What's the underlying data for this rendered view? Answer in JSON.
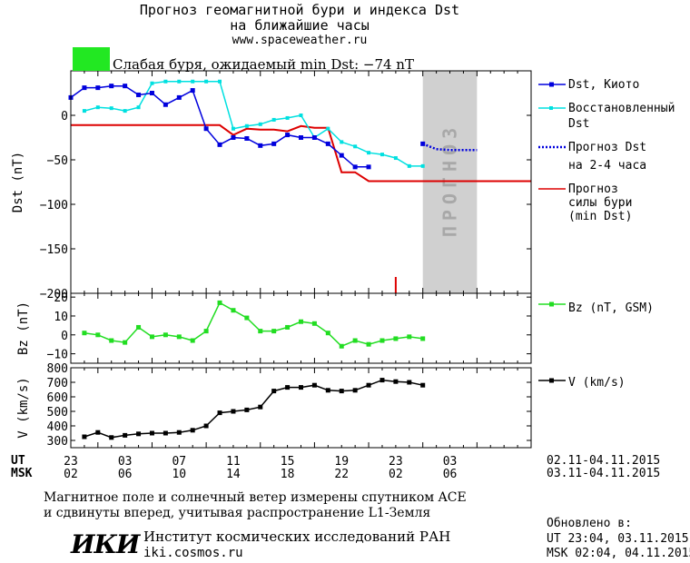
{
  "header": {
    "title_line1": "Прогноз геомагнитной бури и индекса Dst",
    "title_line2": "на ближайшие часы",
    "site": "www.spaceweather.ru",
    "storm_status": "Слабая буря, ожидаемый min Dst: −74 nT",
    "storm_color": "#22e822"
  },
  "colors": {
    "dst": "#0000dd",
    "restored": "#00e0e0",
    "forecast": "#0000dd",
    "storm": "#dd0000",
    "bz": "#22dd22",
    "v": "#000000",
    "forecast_zone": "#d0d0d0"
  },
  "legend": {
    "dst": "Dst, Киото",
    "restored_line1": "Восстановленный",
    "restored_line2": "Dst",
    "forecast_line1": "Прогноз Dst",
    "forecast_line2": "на 2-4 часа",
    "storm_line1": "Прогноз",
    "storm_line2": "силы бури",
    "storm_line3": "(min Dst)",
    "bz": "Bz (nT, GSM)",
    "v": "V (km/s)"
  },
  "forecast_zone_label": "ПРОГНОЗ",
  "time_axis": {
    "ut_label": "UT",
    "msk_label": "MSK",
    "ut_ticks": [
      "23",
      "03",
      "07",
      "11",
      "15",
      "19",
      "23",
      "03"
    ],
    "msk_ticks": [
      "02",
      "06",
      "10",
      "14",
      "18",
      "22",
      "02",
      "06"
    ],
    "ut_range": "02.11-04.11.2015",
    "msk_range": "03.11-04.11.2015"
  },
  "footer": {
    "note_line1": "Магнитное поле и солнечный ветер измерены спутником ACE",
    "note_line2": "и сдвинуты вперед, учитывая распространение L1-Земля",
    "institute_logo": "ИКИ",
    "institute_name": "Институт космических исследований РАН",
    "institute_url": "iki.cosmos.ru",
    "updated_label": "Обновлено в:",
    "updated_ut": "UT  23:04, 03.11.2015",
    "updated_msk": "MSK 02:04, 04.11.2015"
  },
  "chart_data": [
    {
      "type": "line",
      "panel": "dst",
      "ylabel": "Dst (nT)",
      "ylim": [
        -200,
        50
      ],
      "yticks": [
        0,
        -50,
        -100,
        -150,
        -200
      ],
      "x_unit": "hours from 23 UT 02.11.2015",
      "xlim": [
        -2,
        32
      ],
      "forecast_zone_x": [
        24,
        28
      ],
      "series": [
        {
          "name": "Dst, Киото",
          "x": [
            -2,
            -1,
            0,
            1,
            2,
            3,
            4,
            5,
            6,
            7,
            8,
            9,
            10,
            11,
            12,
            13,
            14,
            15,
            16,
            17,
            18,
            19,
            20,
            21,
            22
          ],
          "y": [
            20,
            31,
            31,
            33,
            33,
            23,
            25,
            12,
            20,
            28,
            -15,
            -33,
            -25,
            -26,
            -34,
            -32,
            -22,
            -25,
            -25,
            -32,
            -45,
            -58,
            -58,
            null,
            null
          ]
        },
        {
          "name": "Восстановленный Dst",
          "x": [
            -1,
            0,
            1,
            2,
            3,
            4,
            5,
            6,
            7,
            8,
            9,
            10,
            11,
            12,
            13,
            14,
            15,
            16,
            17,
            18,
            19,
            20,
            21,
            22,
            23,
            24,
            25
          ],
          "y": [
            5,
            9,
            8,
            5,
            9,
            36,
            38,
            38,
            38,
            38,
            38,
            -15,
            -12,
            -10,
            -5,
            -3,
            0,
            -25,
            -15,
            -30,
            -35,
            -42,
            -44,
            -48,
            -57,
            -57,
            null
          ]
        },
        {
          "name": "Прогноз Dst на 2-4 часа",
          "x": [
            24,
            25,
            26,
            27,
            28
          ],
          "y": [
            -32,
            -38,
            -39,
            -39,
            -39
          ]
        },
        {
          "name": "Прогноз силы бури (min Dst)",
          "x": [
            -2,
            9,
            10,
            11,
            12,
            13,
            14,
            15,
            16,
            17,
            18,
            19,
            20,
            32
          ],
          "y": [
            -11,
            -11,
            -22,
            -15,
            -16,
            -16,
            -18,
            -12,
            -14,
            -14,
            -64,
            -64,
            -74,
            -74
          ]
        }
      ],
      "marker_x": 22
    },
    {
      "type": "line",
      "panel": "bz",
      "ylabel": "Bz (nT)",
      "ylim": [
        -15,
        22
      ],
      "yticks": [
        20,
        10,
        0,
        -10
      ],
      "series": [
        {
          "name": "Bz (nT, GSM)",
          "x": [
            -1,
            0,
            1,
            2,
            3,
            4,
            5,
            6,
            7,
            8,
            9,
            10,
            11,
            12,
            13,
            14,
            15,
            16,
            17,
            18,
            19,
            20,
            21,
            22,
            23,
            24
          ],
          "y": [
            1,
            0,
            -3,
            -4,
            4,
            -1,
            0,
            -1,
            -3,
            2,
            17,
            13,
            9,
            2,
            2,
            4,
            7,
            6,
            1,
            -6,
            -3,
            -5,
            -3,
            -2,
            -1,
            -2
          ]
        }
      ]
    },
    {
      "type": "line",
      "panel": "v",
      "ylabel": "V (km/s)",
      "ylim": [
        250,
        800
      ],
      "yticks": [
        300,
        400,
        500,
        600,
        700,
        800
      ],
      "series": [
        {
          "name": "V (km/s)",
          "x": [
            -1,
            0,
            1,
            2,
            3,
            4,
            5,
            6,
            7,
            8,
            9,
            10,
            11,
            12,
            13,
            14,
            15,
            16,
            17,
            18,
            19,
            20,
            21,
            22,
            23,
            24
          ],
          "y": [
            325,
            355,
            320,
            335,
            345,
            350,
            350,
            355,
            370,
            400,
            490,
            500,
            510,
            530,
            640,
            665,
            665,
            680,
            645,
            640,
            645,
            680,
            715,
            705,
            700,
            680
          ]
        }
      ]
    }
  ]
}
